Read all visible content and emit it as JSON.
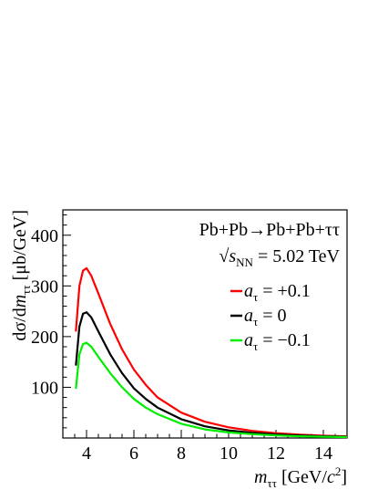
{
  "chart_data": {
    "type": "line",
    "title": "",
    "annotations": {
      "process": "Pb+Pb→Pb+Pb+ττ",
      "energy_prefix": "√",
      "energy_var": "s",
      "energy_sub": "NN",
      "energy_value": " = 5.02 TeV"
    },
    "xlabel": {
      "var": "m",
      "sub": "ττ",
      "unit_open": " [GeV/",
      "unit_c": "c",
      "unit_sup": "2",
      "unit_close": "]"
    },
    "ylabel": {
      "prefix": "dσ/d",
      "var": "m",
      "sub": "ττ",
      "unit": " [μb/GeV]"
    },
    "xlim": [
      3,
      15
    ],
    "ylim": [
      0,
      450
    ],
    "x_ticks": [
      4,
      6,
      8,
      10,
      12,
      14
    ],
    "x_tick_labels": [
      "4",
      "6",
      "8",
      "10",
      "12",
      "14"
    ],
    "y_ticks": [
      100,
      200,
      300,
      400
    ],
    "y_tick_labels": [
      "100",
      "200",
      "300",
      "400"
    ],
    "grid": false,
    "legend_position": "top-right",
    "x": [
      3.55,
      3.7,
      3.85,
      4.0,
      4.2,
      4.5,
      5.0,
      5.5,
      6.0,
      6.5,
      7.0,
      8.0,
      9.0,
      10.0,
      11.0,
      12.0,
      13.0,
      14.0,
      15.0
    ],
    "series": [
      {
        "label_var": "a",
        "label_sub": "τ",
        "label_value": " = +0.1",
        "color": "#ff0000",
        "values": [
          210,
          300,
          330,
          335,
          320,
          285,
          225,
          175,
          135,
          105,
          80,
          50,
          32,
          21,
          14,
          9.5,
          6.5,
          4.5,
          3.2
        ]
      },
      {
        "label_var": "a",
        "label_sub": "τ",
        "label_value": " = 0",
        "color": "#000000",
        "values": [
          143,
          220,
          245,
          248,
          238,
          210,
          165,
          128,
          98,
          77,
          60,
          37,
          23,
          15,
          10,
          7,
          5,
          3.5,
          2.5
        ]
      },
      {
        "label_var": "a",
        "label_sub": "τ",
        "label_value": " = −0.1",
        "color": "#00ee00",
        "values": [
          97,
          165,
          185,
          188,
          180,
          160,
          128,
          100,
          77,
          60,
          47,
          28,
          17,
          11,
          7.5,
          5,
          3.5,
          2.5,
          1.8
        ]
      }
    ]
  }
}
